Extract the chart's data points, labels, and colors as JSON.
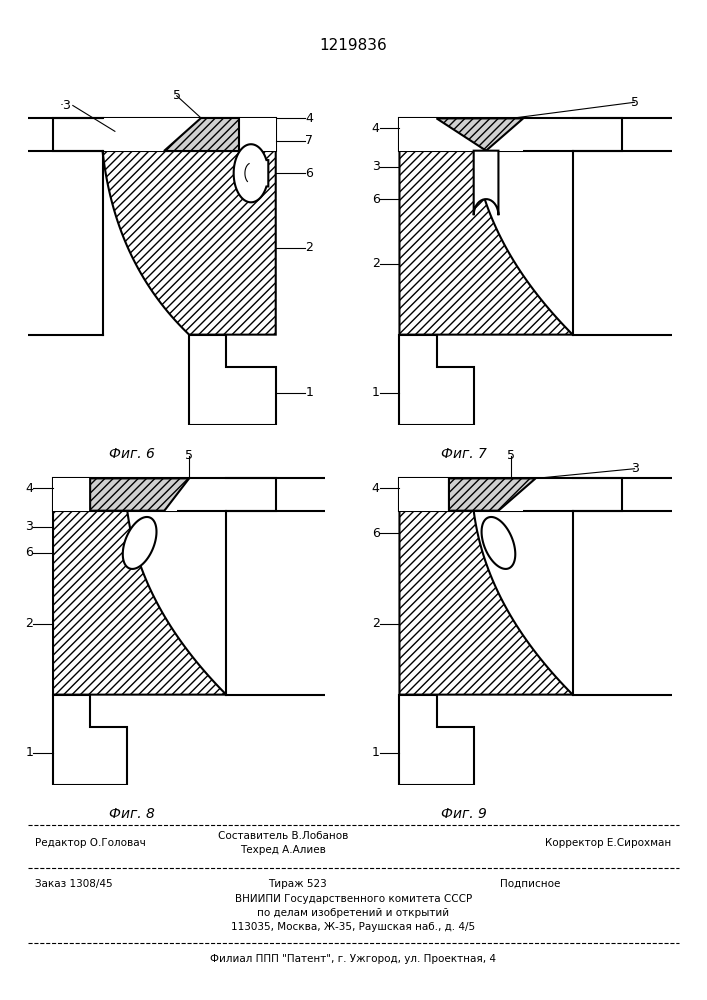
{
  "title_number": "1219836",
  "footer": {
    "line1_left": "Редактор О.Головач",
    "line1_center_top": "Составитель В.Лобанов",
    "line1_center_bot": "Техред А.Алиев",
    "line1_right": "Корректор Е.Сирохман",
    "line2_left": "Заказ 1308/45",
    "line2_center": "Тираж 523",
    "line2_right": "Подписное",
    "line3": "ВНИИПИ Государственного комитета СССР",
    "line4": "по делам изобретений и открытий",
    "line5": "113035, Москва, Ж-35, Раушская наб., д. 4/5",
    "line6": "Филиал ППП \"Патент\", г. Ужгород, ул. Проектная, 4"
  }
}
